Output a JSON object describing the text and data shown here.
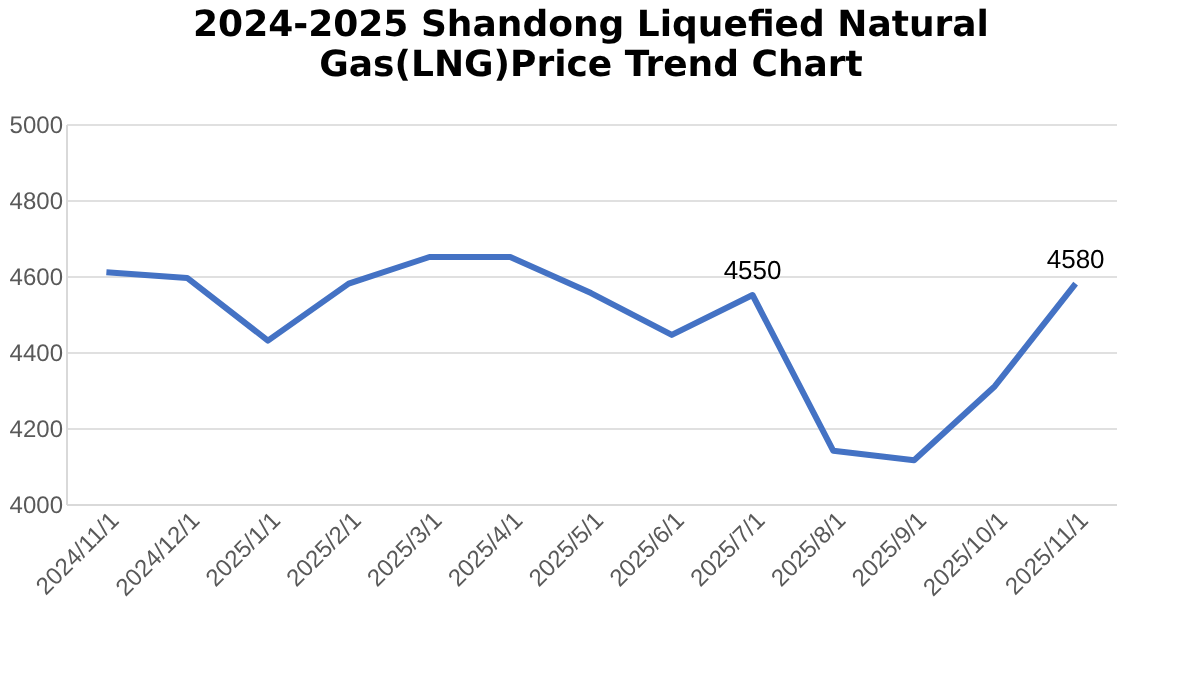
{
  "chart_data": {
    "type": "line",
    "title": "2024-2025 Shandong Liquefied Natural Gas(LNG)Price Trend Chart",
    "categories": [
      "2024/11/1",
      "2024/12/1",
      "2025/1/1",
      "2025/2/1",
      "2025/3/1",
      "2025/4/1",
      "2025/5/1",
      "2025/6/1",
      "2025/7/1",
      "2025/8/1",
      "2025/9/1",
      "2025/10/1",
      "2025/11/1"
    ],
    "series": [
      {
        "color": "#4472c4",
        "values": [
          4610,
          4595,
          4430,
          4580,
          4650,
          4650,
          4555,
          4445,
          4550,
          4140,
          4115,
          4310,
          4580
        ],
        "value_labels": [
          null,
          null,
          null,
          null,
          null,
          null,
          null,
          null,
          "4550",
          null,
          null,
          null,
          "4580"
        ]
      }
    ],
    "ylim": [
      4000,
      5000
    ],
    "yticks": [
      4000,
      4200,
      4400,
      4600,
      4800,
      5000
    ],
    "grid": "y",
    "marker": "none",
    "line_style": "solid"
  }
}
